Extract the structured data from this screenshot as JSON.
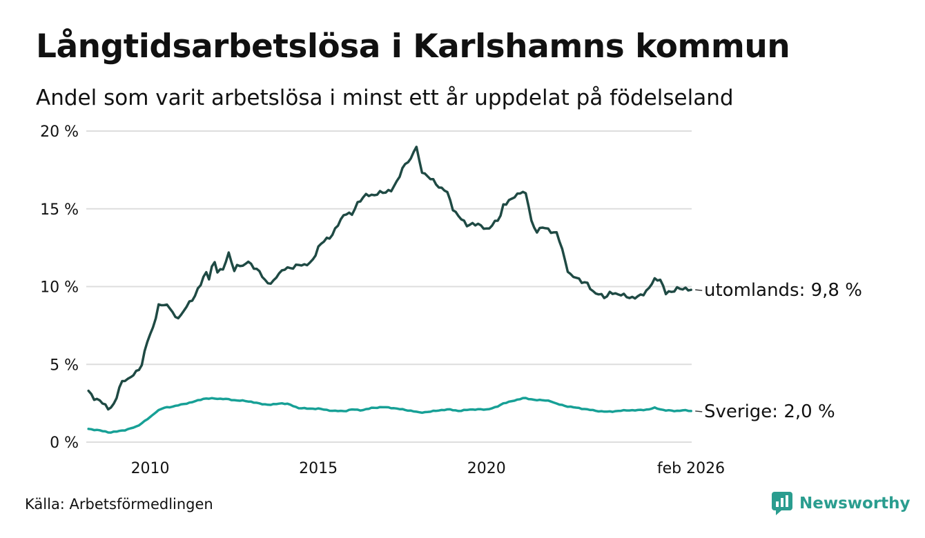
{
  "header": {
    "title": "Långtidsarbetslösa i Karlshamns kommun",
    "subtitle": "Andel som varit arbetslösa i minst ett år uppdelat på födelseland"
  },
  "footer": {
    "source": "Källa: Arbetsförmedlingen",
    "brand": "Newsworthy"
  },
  "colors": {
    "utomlands": "#1f4a44",
    "sverige": "#17a096",
    "grid": "#dddddd",
    "brand": "#2a9d8f"
  },
  "chart_data": {
    "type": "line",
    "title": "Långtidsarbetslösa i Karlshamns kommun",
    "subtitle": "Andel som varit arbetslösa i minst ett år uppdelat på födelseland",
    "xlabel": "",
    "ylabel": "",
    "x_start": "2008-03",
    "x_end": "2026-02",
    "x_step": "month",
    "xlim": [
      2008.1,
      2026.1
    ],
    "ylim": [
      0,
      20
    ],
    "yticks": [
      0,
      5,
      10,
      15,
      20
    ],
    "ytick_labels": [
      "0 %",
      "5 %",
      "10 %",
      "15 %",
      "20 %"
    ],
    "xticks": [
      2010,
      2015,
      2020,
      2026.08
    ],
    "xtick_labels": [
      "2010",
      "2015",
      "2020",
      "feb 2026"
    ],
    "grid": true,
    "series": [
      {
        "name": "utomlands",
        "end_label": "utomlands: 9,8 %",
        "anchors": [
          [
            2008.17,
            3.3
          ],
          [
            2008.35,
            2.8
          ],
          [
            2008.6,
            2.5
          ],
          [
            2008.75,
            2.2
          ],
          [
            2008.95,
            2.4
          ],
          [
            2009.05,
            3.3
          ],
          [
            2009.2,
            4.1
          ],
          [
            2009.35,
            4.0
          ],
          [
            2009.55,
            4.4
          ],
          [
            2009.75,
            5.0
          ],
          [
            2009.9,
            6.4
          ],
          [
            2010.05,
            7.1
          ],
          [
            2010.25,
            8.8
          ],
          [
            2010.4,
            8.8
          ],
          [
            2010.6,
            8.7
          ],
          [
            2010.75,
            8.0
          ],
          [
            2010.9,
            8.0
          ],
          [
            2011.1,
            8.9
          ],
          [
            2011.3,
            9.2
          ],
          [
            2011.5,
            10.2
          ],
          [
            2011.65,
            11.0
          ],
          [
            2011.75,
            10.5
          ],
          [
            2011.9,
            11.7
          ],
          [
            2012.0,
            11.0
          ],
          [
            2012.2,
            11.2
          ],
          [
            2012.35,
            12.2
          ],
          [
            2012.5,
            11.0
          ],
          [
            2012.6,
            11.5
          ],
          [
            2012.75,
            11.2
          ],
          [
            2012.9,
            11.7
          ],
          [
            2013.1,
            11.2
          ],
          [
            2013.3,
            10.8
          ],
          [
            2013.45,
            10.3
          ],
          [
            2013.65,
            10.2
          ],
          [
            2013.8,
            10.8
          ],
          [
            2014.0,
            11.2
          ],
          [
            2014.2,
            11.1
          ],
          [
            2014.4,
            11.5
          ],
          [
            2014.6,
            11.3
          ],
          [
            2014.8,
            11.6
          ],
          [
            2015.0,
            12.5
          ],
          [
            2015.2,
            13.0
          ],
          [
            2015.4,
            13.3
          ],
          [
            2015.6,
            14.0
          ],
          [
            2015.8,
            14.8
          ],
          [
            2016.0,
            14.6
          ],
          [
            2016.2,
            15.5
          ],
          [
            2016.4,
            15.9
          ],
          [
            2016.6,
            15.8
          ],
          [
            2016.8,
            16.1
          ],
          [
            2017.0,
            16.0
          ],
          [
            2017.2,
            16.3
          ],
          [
            2017.4,
            17.0
          ],
          [
            2017.6,
            18.0
          ],
          [
            2017.75,
            18.2
          ],
          [
            2017.9,
            19.1
          ],
          [
            2018.05,
            17.5
          ],
          [
            2018.2,
            17.2
          ],
          [
            2018.4,
            16.8
          ],
          [
            2018.6,
            16.4
          ],
          [
            2018.8,
            16.2
          ],
          [
            2019.0,
            15.0
          ],
          [
            2019.2,
            14.5
          ],
          [
            2019.4,
            13.9
          ],
          [
            2019.6,
            14.1
          ],
          [
            2019.8,
            13.9
          ],
          [
            2020.0,
            13.7
          ],
          [
            2020.2,
            14.0
          ],
          [
            2020.4,
            14.4
          ],
          [
            2020.5,
            15.3
          ],
          [
            2020.7,
            15.5
          ],
          [
            2020.9,
            15.9
          ],
          [
            2021.05,
            16.2
          ],
          [
            2021.2,
            15.8
          ],
          [
            2021.35,
            14.0
          ],
          [
            2021.5,
            13.6
          ],
          [
            2021.7,
            13.8
          ],
          [
            2021.9,
            13.6
          ],
          [
            2022.1,
            13.4
          ],
          [
            2022.3,
            12.0
          ],
          [
            2022.45,
            10.8
          ],
          [
            2022.6,
            10.6
          ],
          [
            2022.8,
            10.4
          ],
          [
            2023.0,
            10.2
          ],
          [
            2023.15,
            9.6
          ],
          [
            2023.35,
            9.6
          ],
          [
            2023.55,
            9.2
          ],
          [
            2023.7,
            9.7
          ],
          [
            2023.9,
            9.5
          ],
          [
            2024.1,
            9.4
          ],
          [
            2024.35,
            9.3
          ],
          [
            2024.5,
            9.3
          ],
          [
            2024.7,
            9.6
          ],
          [
            2024.85,
            10.0
          ],
          [
            2025.0,
            10.4
          ],
          [
            2025.2,
            10.5
          ],
          [
            2025.3,
            9.6
          ],
          [
            2025.5,
            9.6
          ],
          [
            2025.7,
            10.0
          ],
          [
            2025.85,
            9.8
          ],
          [
            2026.08,
            9.8
          ]
        ]
      },
      {
        "name": "Sverige",
        "end_label": "Sverige: 2,0 %",
        "anchors": [
          [
            2008.17,
            0.85
          ],
          [
            2008.5,
            0.75
          ],
          [
            2008.8,
            0.62
          ],
          [
            2009.0,
            0.68
          ],
          [
            2009.3,
            0.8
          ],
          [
            2009.6,
            1.0
          ],
          [
            2009.8,
            1.3
          ],
          [
            2010.0,
            1.6
          ],
          [
            2010.2,
            2.0
          ],
          [
            2010.4,
            2.2
          ],
          [
            2010.7,
            2.3
          ],
          [
            2011.0,
            2.45
          ],
          [
            2011.3,
            2.6
          ],
          [
            2011.6,
            2.8
          ],
          [
            2011.9,
            2.8
          ],
          [
            2012.2,
            2.78
          ],
          [
            2012.5,
            2.7
          ],
          [
            2012.8,
            2.65
          ],
          [
            2013.0,
            2.6
          ],
          [
            2013.3,
            2.45
          ],
          [
            2013.6,
            2.4
          ],
          [
            2013.9,
            2.5
          ],
          [
            2014.1,
            2.45
          ],
          [
            2014.4,
            2.2
          ],
          [
            2014.7,
            2.15
          ],
          [
            2015.0,
            2.15
          ],
          [
            2015.3,
            2.05
          ],
          [
            2015.5,
            2.0
          ],
          [
            2015.8,
            2.0
          ],
          [
            2016.0,
            2.1
          ],
          [
            2016.3,
            2.05
          ],
          [
            2016.6,
            2.2
          ],
          [
            2016.9,
            2.25
          ],
          [
            2017.2,
            2.2
          ],
          [
            2017.5,
            2.1
          ],
          [
            2017.8,
            2.0
          ],
          [
            2018.0,
            1.9
          ],
          [
            2018.3,
            1.95
          ],
          [
            2018.6,
            2.05
          ],
          [
            2018.9,
            2.1
          ],
          [
            2019.2,
            2.0
          ],
          [
            2019.5,
            2.1
          ],
          [
            2019.8,
            2.1
          ],
          [
            2020.0,
            2.1
          ],
          [
            2020.3,
            2.25
          ],
          [
            2020.5,
            2.5
          ],
          [
            2020.8,
            2.65
          ],
          [
            2021.1,
            2.85
          ],
          [
            2021.3,
            2.75
          ],
          [
            2021.6,
            2.7
          ],
          [
            2021.9,
            2.65
          ],
          [
            2022.1,
            2.45
          ],
          [
            2022.4,
            2.3
          ],
          [
            2022.7,
            2.2
          ],
          [
            2023.0,
            2.1
          ],
          [
            2023.3,
            2.0
          ],
          [
            2023.6,
            1.95
          ],
          [
            2023.9,
            2.0
          ],
          [
            2024.2,
            2.05
          ],
          [
            2024.5,
            2.05
          ],
          [
            2024.8,
            2.1
          ],
          [
            2025.0,
            2.2
          ],
          [
            2025.3,
            2.05
          ],
          [
            2025.6,
            2.0
          ],
          [
            2025.85,
            2.05
          ],
          [
            2026.08,
            2.0
          ]
        ]
      }
    ]
  }
}
